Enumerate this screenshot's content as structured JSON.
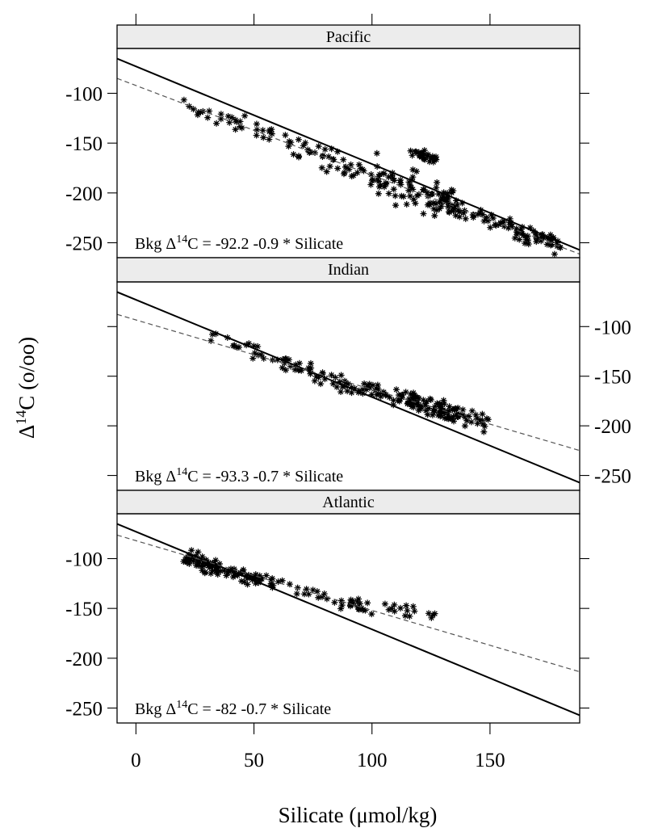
{
  "chart_data": {
    "type": "scatter",
    "xlabel": "Silicate (μmol/kg)",
    "ylabel_prefix": "Δ",
    "ylabel_sup": "14",
    "ylabel_suffix": "C (o/oo)",
    "xlim": [
      -8,
      188
    ],
    "ylim": [
      -265,
      -55
    ],
    "x_ticks": [
      0,
      50,
      100,
      150
    ],
    "y_ticks": [
      -100,
      -150,
      -200,
      -250
    ],
    "panels": [
      {
        "name": "Pacific",
        "annotation": {
          "label": "Bkg Δ",
          "sup": "14",
          "rest": "C =  -92.2   -0.9  * Silicate"
        },
        "solid_line": {
          "intercept": -73,
          "slope": -0.98
        },
        "dashed_line": {
          "intercept": -92.2,
          "slope": -0.9
        },
        "clusters": [
          {
            "x_from": 20,
            "x_to": 35,
            "n": 10,
            "line_intercept": -92.2,
            "slope": -0.9,
            "spread": 6
          },
          {
            "x_from": 35,
            "x_to": 65,
            "n": 25,
            "line_intercept": -92.2,
            "slope": -0.9,
            "spread": 8
          },
          {
            "x_from": 65,
            "x_to": 100,
            "n": 40,
            "line_intercept": -92.2,
            "slope": -0.9,
            "spread": 14
          },
          {
            "x_from": 100,
            "x_to": 135,
            "n": 90,
            "line_intercept": -92.2,
            "slope": -0.9,
            "spread": 18
          },
          {
            "x_from": 115,
            "x_to": 128,
            "n": 28,
            "line_intercept": -52,
            "slope": -0.9,
            "spread": 5
          },
          {
            "x_from": 135,
            "x_to": 180,
            "n": 80,
            "line_intercept": -92.2,
            "slope": -0.9,
            "spread": 9
          }
        ]
      },
      {
        "name": "Indian",
        "annotation": {
          "label": "Bkg Δ",
          "sup": "14",
          "rest": "C =  -93.3   -0.7  * Silicate"
        },
        "solid_line": {
          "intercept": -73,
          "slope": -0.98
        },
        "dashed_line": {
          "intercept": -93.3,
          "slope": -0.7
        },
        "clusters": [
          {
            "x_from": 30,
            "x_to": 60,
            "n": 18,
            "line_intercept": -76,
            "slope": -0.98,
            "spread": 8
          },
          {
            "x_from": 60,
            "x_to": 95,
            "n": 45,
            "line_intercept": -88,
            "slope": -0.78,
            "spread": 8
          },
          {
            "x_from": 95,
            "x_to": 120,
            "n": 45,
            "line_intercept": -93.3,
            "slope": -0.7,
            "spread": 8
          },
          {
            "x_from": 115,
            "x_to": 150,
            "n": 90,
            "line_intercept": -93.3,
            "slope": -0.7,
            "spread": 10
          }
        ]
      },
      {
        "name": "Atlantic",
        "annotation": {
          "label": "Bkg Δ",
          "sup": "14",
          "rest": "C =  -82   -0.7  * Silicate"
        },
        "solid_line": {
          "intercept": -73,
          "slope": -0.98
        },
        "dashed_line": {
          "intercept": -82,
          "slope": -0.7
        },
        "clusters": [
          {
            "x_from": 20,
            "x_to": 35,
            "n": 55,
            "line_intercept": -78,
            "slope": -0.95,
            "spread": 8
          },
          {
            "x_from": 35,
            "x_to": 60,
            "n": 45,
            "line_intercept": -82,
            "slope": -0.78,
            "spread": 8
          },
          {
            "x_from": 60,
            "x_to": 100,
            "n": 35,
            "line_intercept": -82,
            "slope": -0.7,
            "spread": 7
          },
          {
            "x_from": 100,
            "x_to": 130,
            "n": 16,
            "line_intercept": -82,
            "slope": -0.62,
            "spread": 6
          }
        ]
      }
    ]
  }
}
